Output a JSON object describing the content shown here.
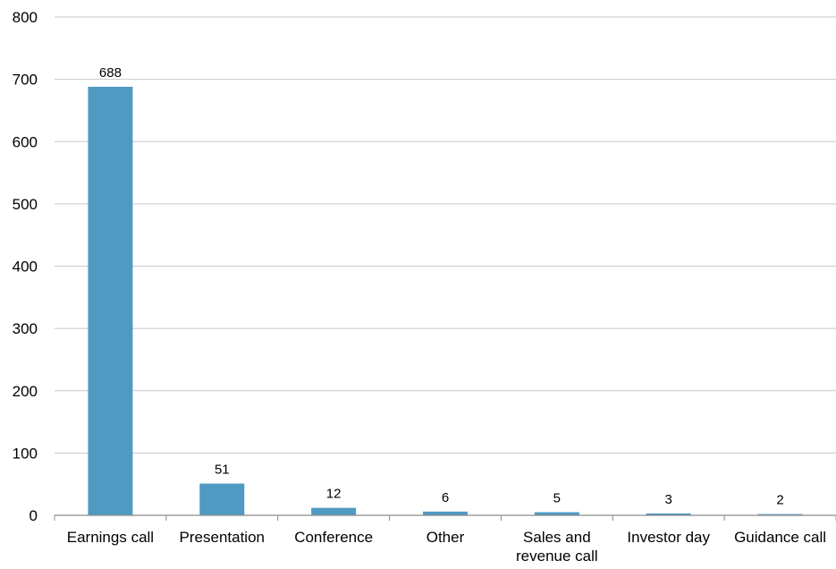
{
  "chart_data": {
    "type": "bar",
    "title": "",
    "xlabel": "",
    "ylabel": "",
    "categories": [
      [
        "Earnings call"
      ],
      [
        "Presentation"
      ],
      [
        "Conference"
      ],
      [
        "Other"
      ],
      [
        "Sales and",
        "revenue call"
      ],
      [
        "Investor day"
      ],
      [
        "Guidance call"
      ]
    ],
    "values": [
      688,
      51,
      12,
      6,
      5,
      3,
      2
    ],
    "data_labels": [
      "688",
      "51",
      "12",
      "6",
      "5",
      "3",
      "2"
    ],
    "ylim": [
      0,
      800
    ],
    "yticks": [
      0,
      100,
      200,
      300,
      400,
      500,
      600,
      700,
      800
    ],
    "grid": "horizontal",
    "legend": "none",
    "colors": {
      "bar": "#4f9ac3",
      "grid": "#c8c8c8",
      "axis": "#8c8c8c",
      "text": "#000000"
    }
  }
}
